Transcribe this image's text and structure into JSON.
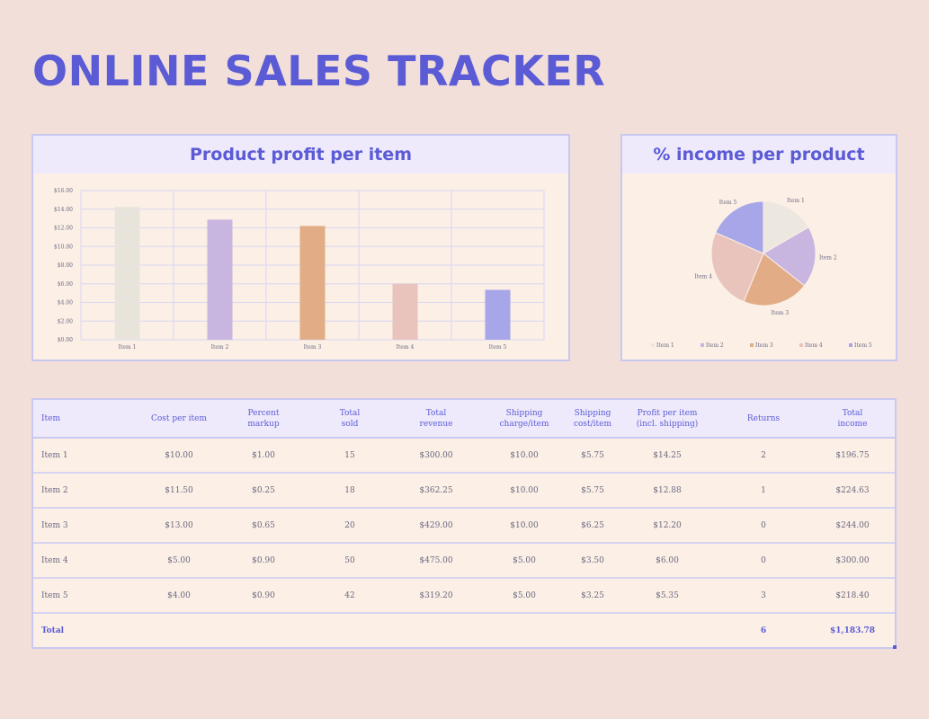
{
  "title": "ONLINE SALES TRACKER",
  "bar_chart": {
    "header": "Product profit per item"
  },
  "pie_chart": {
    "header": "% income per product"
  },
  "chart_data": [
    {
      "type": "bar",
      "title": "Product profit per item",
      "categories": [
        "Item 1",
        "Item 2",
        "Item 3",
        "Item 4",
        "Item 5"
      ],
      "values": [
        14.25,
        12.88,
        12.2,
        6.0,
        5.35
      ],
      "colors": [
        "#e8e4dc",
        "#c9b6e0",
        "#e2ad86",
        "#e9c4bc",
        "#a6a6e8"
      ],
      "ylim": [
        0,
        16
      ],
      "yticks": [
        "$0.00",
        "$2.00",
        "$4.00",
        "$6.00",
        "$8.00",
        "$10.00",
        "$12.00",
        "$14.00",
        "$16.00"
      ],
      "grid": true
    },
    {
      "type": "pie",
      "title": "% income per product",
      "categories": [
        "Item 1",
        "Item 2",
        "Item 3",
        "Item 4",
        "Item 5"
      ],
      "values": [
        196.75,
        224.63,
        244.0,
        300.0,
        218.4
      ],
      "colors": [
        "#ece8e0",
        "#c9b6e0",
        "#e2ad86",
        "#e9c4bc",
        "#a6a6e8"
      ],
      "legend_position": "bottom"
    }
  ],
  "table": {
    "headers": [
      [
        "Item"
      ],
      [
        "Cost per item"
      ],
      [
        "Percent",
        "markup"
      ],
      [
        "Total",
        "sold"
      ],
      [
        "Total",
        "revenue"
      ],
      [
        "Shipping",
        "charge/item"
      ],
      [
        "Shipping",
        "cost/item"
      ],
      [
        "Profit per item",
        "(incl. shipping)"
      ],
      [
        "Returns"
      ],
      [
        "Total",
        "income"
      ]
    ],
    "rows": [
      [
        "Item 1",
        "$10.00",
        "$1.00",
        "15",
        "$300.00",
        "$10.00",
        "$5.75",
        "$14.25",
        "2",
        "$196.75"
      ],
      [
        "Item 2",
        "$11.50",
        "$0.25",
        "18",
        "$362.25",
        "$10.00",
        "$5.75",
        "$12.88",
        "1",
        "$224.63"
      ],
      [
        "Item 3",
        "$13.00",
        "$0.65",
        "20",
        "$429.00",
        "$10.00",
        "$6.25",
        "$12.20",
        "0",
        "$244.00"
      ],
      [
        "Item 4",
        "$5.00",
        "$0.90",
        "50",
        "$475.00",
        "$5.00",
        "$3.50",
        "$6.00",
        "0",
        "$300.00"
      ],
      [
        "Item 5",
        "$4.00",
        "$0.90",
        "42",
        "$319.20",
        "$5.00",
        "$3.25",
        "$5.35",
        "3",
        "$218.40"
      ]
    ],
    "footer": [
      "Total",
      "",
      "",
      "",
      "",
      "",
      "",
      "",
      "6",
      "$1,183.78"
    ]
  },
  "colors": {
    "background": "#f2dfd9",
    "accent": "#5b5bd6",
    "card": "#fbefe6",
    "header_fill": "#eeeafb",
    "border": "#c9c8f0"
  }
}
